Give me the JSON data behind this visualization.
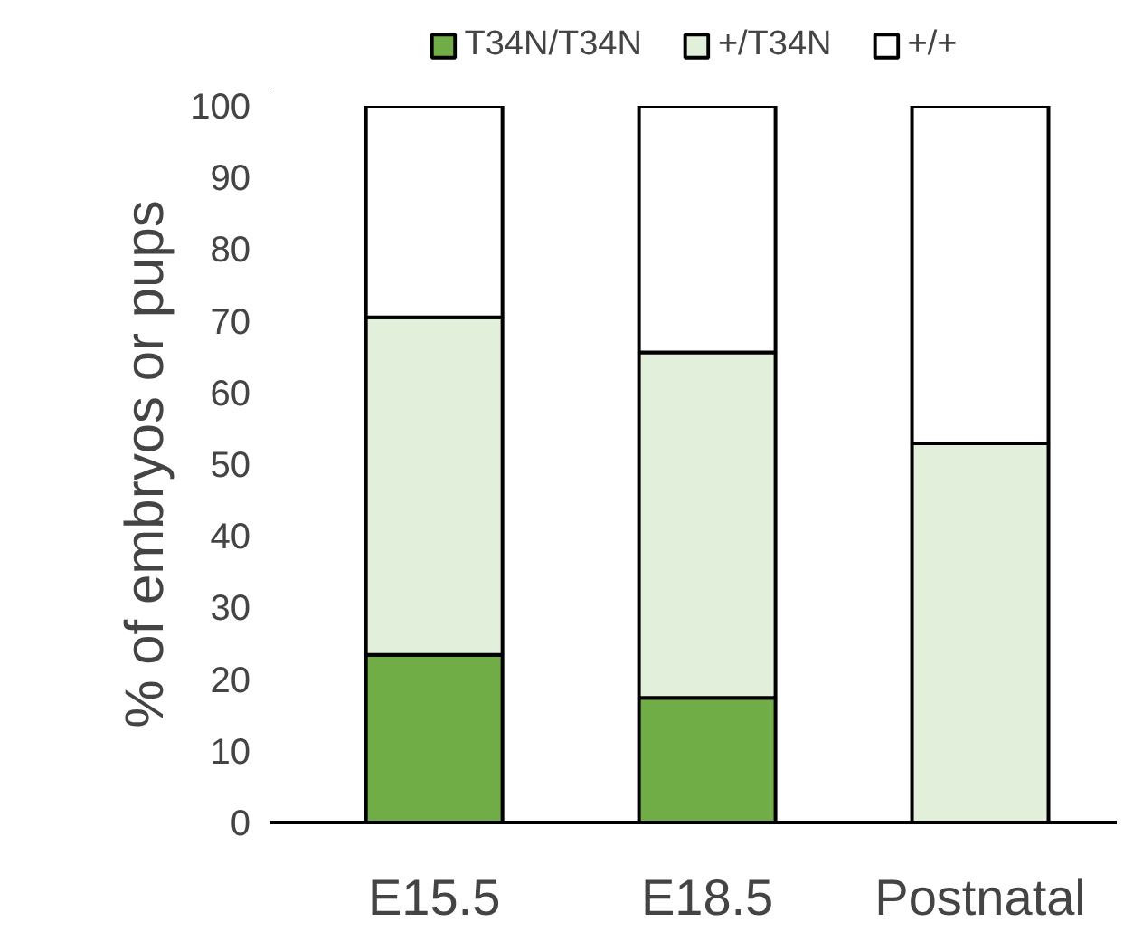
{
  "chart_data": {
    "type": "bar",
    "stacked": true,
    "ylabel": "% of embryos or pups",
    "categories": [
      "E15.5",
      "E18.5",
      "Postnatal"
    ],
    "series": [
      {
        "name": "T34N/T34N",
        "color": "#70ad47",
        "values": [
          23.4,
          17.4,
          0
        ]
      },
      {
        "name": "+/T34N",
        "color": "#e2efda",
        "values": [
          47.1,
          48.2,
          52.9
        ]
      },
      {
        "name": "+/+",
        "color": "#ffffff",
        "values": [
          29.5,
          34.4,
          47.1
        ]
      }
    ],
    "ylim": [
      0,
      100
    ],
    "yticks": [
      0,
      10,
      20,
      30,
      40,
      50,
      60,
      70,
      80,
      90,
      100
    ],
    "legend": "top"
  }
}
